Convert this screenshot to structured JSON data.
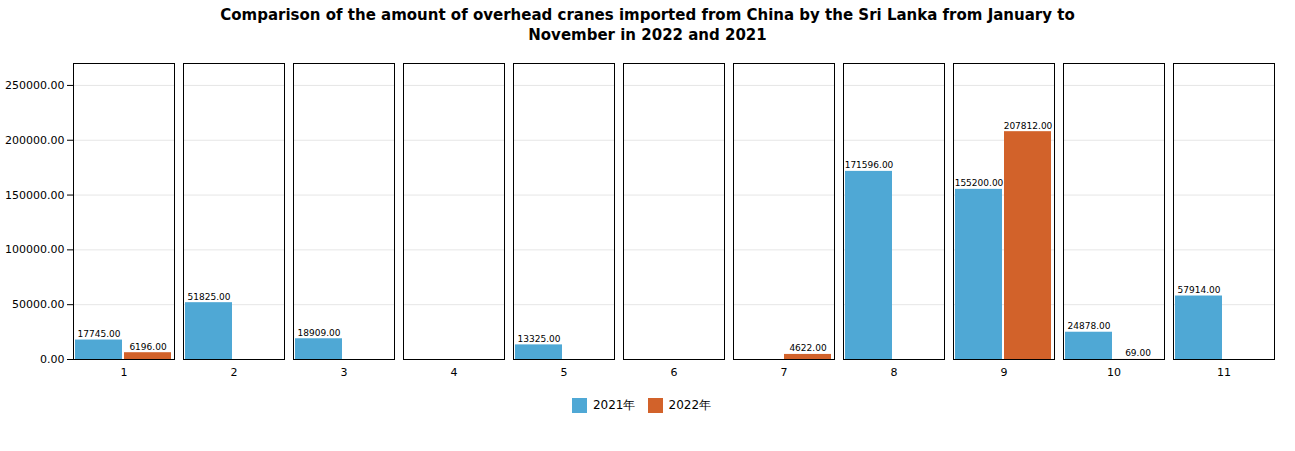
{
  "chart_data": {
    "type": "bar",
    "title": "Comparison of the amount of overhead cranes imported from China by the Sri Lanka from January to\nNovember in 2022 and 2021",
    "categories": [
      "1",
      "2",
      "3",
      "4",
      "5",
      "6",
      "7",
      "8",
      "9",
      "10",
      "11"
    ],
    "series": [
      {
        "name": "2021年",
        "color": "#4FA8D5",
        "values": [
          17745.0,
          51825.0,
          18909.0,
          0.0,
          13325.0,
          0.0,
          0.0,
          171596.0,
          155200.0,
          24878.0,
          57914.0
        ],
        "value_labels": [
          "17745.00",
          "51825.00",
          "18909.00",
          null,
          "13325.00",
          null,
          null,
          "171596.00",
          "155200.00",
          "24878.00",
          "57914.00"
        ]
      },
      {
        "name": "2022年",
        "color": "#D2622A",
        "values": [
          6196.0,
          0.0,
          0.0,
          0.0,
          0.0,
          0.0,
          4622.0,
          0.0,
          207812.0,
          69.0,
          0.0
        ],
        "value_labels": [
          "6196.00",
          null,
          null,
          null,
          null,
          null,
          "4622.00",
          null,
          "207812.00",
          "69.00",
          null
        ]
      }
    ],
    "ylim": [
      0,
      270000
    ],
    "yticks": [
      {
        "value": 0,
        "label": "0.00"
      },
      {
        "value": 50000,
        "label": "50000.00"
      },
      {
        "value": 100000,
        "label": "100000.00"
      },
      {
        "value": 150000,
        "label": "150000.00"
      },
      {
        "value": 200000,
        "label": "200000.00"
      },
      {
        "value": 250000,
        "label": "250000.00"
      }
    ],
    "grid": true,
    "legend": "bottom",
    "data_labels": true
  }
}
